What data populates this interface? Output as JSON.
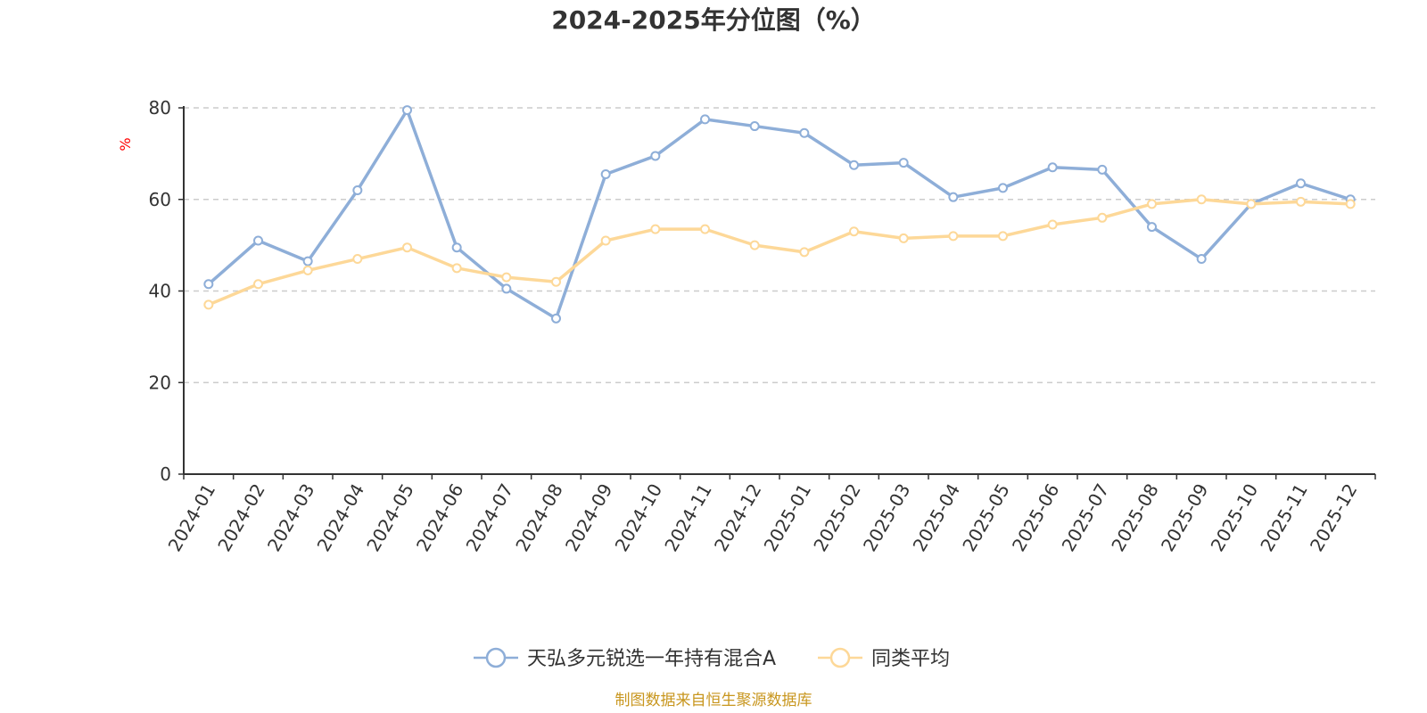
{
  "chart_data": {
    "type": "line",
    "title": "2024-2025年分位图（%）",
    "ylabel": "%",
    "ylim": [
      0,
      80
    ],
    "yticks": [
      0,
      20,
      40,
      60,
      80
    ],
    "grid": true,
    "legend_position": "bottom",
    "categories": [
      "2024-01",
      "2024-02",
      "2024-03",
      "2024-04",
      "2024-05",
      "2024-06",
      "2024-07",
      "2024-08",
      "2024-09",
      "2024-10",
      "2024-11",
      "2024-12",
      "2025-01",
      "2025-02",
      "2025-03",
      "2025-04",
      "2025-05",
      "2025-06",
      "2025-07",
      "2025-08",
      "2025-09",
      "2025-10",
      "2025-11",
      "2025-12"
    ],
    "series": [
      {
        "name": "天弘多元锐选一年持有混合A",
        "color": "#8eaed8",
        "values": [
          41.5,
          51,
          46.5,
          62,
          79.5,
          49.5,
          40.5,
          34,
          65.5,
          69.5,
          77.5,
          76,
          74.5,
          67.5,
          68,
          60.5,
          62.5,
          67,
          66.5,
          54,
          47,
          59,
          63.5,
          60
        ]
      },
      {
        "name": "同类平均",
        "color": "#fdd898",
        "values": [
          37,
          41.5,
          44.5,
          47,
          49.5,
          45,
          43,
          42,
          51,
          53.5,
          53.5,
          50,
          48.5,
          53,
          51.5,
          52,
          52,
          54.5,
          56,
          59,
          60,
          59,
          59.5,
          59
        ]
      }
    ]
  },
  "source_note": "制图数据来自恒生聚源数据库"
}
